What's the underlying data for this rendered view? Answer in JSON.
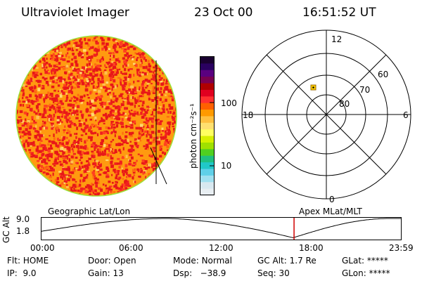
{
  "header": {
    "instrument": "Ultraviolet Imager",
    "date": "23 Oct 00",
    "time": "16:51:52 UT"
  },
  "colorbar": {
    "unit_label": "photon cm⁻²s⁻¹",
    "ticks": [
      "100",
      "10"
    ],
    "colors": [
      "#1a0030",
      "#2a0060",
      "#5a0080",
      "#7a0050",
      "#b00000",
      "#e00020",
      "#ff3030",
      "#ff6000",
      "#ff9a00",
      "#ffc040",
      "#ffe070",
      "#ffff60",
      "#d8f000",
      "#a0e000",
      "#50d020",
      "#20c080",
      "#20c8c8",
      "#60d0e8",
      "#a0e0f0",
      "#d8e8f0",
      "#e8eef2"
    ]
  },
  "polar": {
    "mlt_labels": {
      "top": "12",
      "left": "18",
      "right": "6",
      "bottom": "0"
    },
    "lat_labels": [
      "60",
      "70",
      "80"
    ]
  },
  "timeline": {
    "ylabel": "GC Alt",
    "yticks": [
      "9.0",
      "1.8"
    ],
    "left_title": "Geographic Lat/Lon",
    "right_title": "Apex MLat/MLT",
    "xticks": [
      "00:00",
      "06:00",
      "12:00",
      "18:00",
      "23:59"
    ],
    "cursor_time_fraction": 0.7027
  },
  "status": {
    "flt": {
      "label": "Flt:",
      "value": "HOME"
    },
    "ip": {
      "label": "IP:",
      "value": "9.0"
    },
    "door": {
      "label": "Door:",
      "value": "Open"
    },
    "gain": {
      "label": "Gain:",
      "value": "13"
    },
    "mode": {
      "label": "Mode:",
      "value": "Normal"
    },
    "dsp": {
      "label": "Dsp:",
      "value": "−38.9"
    },
    "gcalt": {
      "label": "GC Alt:",
      "value": "1.7 Re"
    },
    "seq": {
      "label": "Seq:",
      "value": "30"
    },
    "glat": {
      "label": "GLat:",
      "value": "*****"
    },
    "glon": {
      "label": "GLon:",
      "value": "*****"
    }
  }
}
